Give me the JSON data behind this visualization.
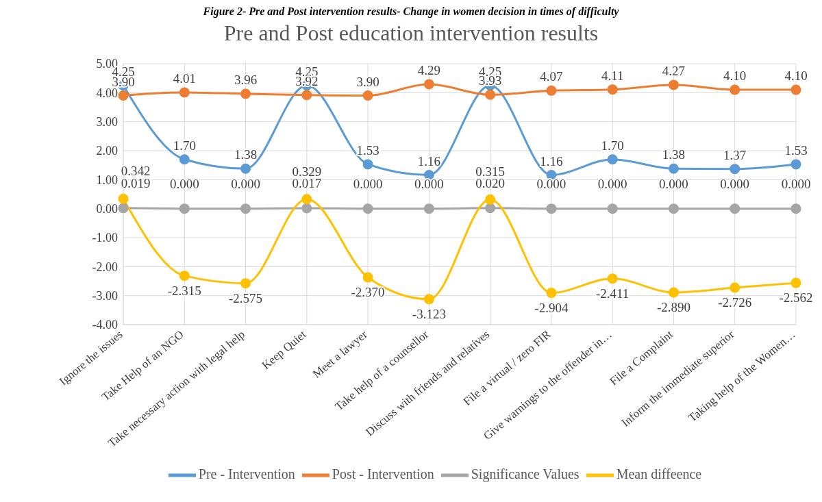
{
  "chart_data": {
    "type": "line",
    "title": "Pre and Post education intervention results",
    "annotations": [
      "Figure 2- Pre and Post intervention results- Change in women decision in times of difficulty"
    ],
    "categories": [
      "Ignore the issues",
      "Take Help of an NGO",
      "Take necessary action with legal help",
      "Keep Quiet",
      "Meet a lawyer",
      "Take help of a counsellor",
      "Discuss with friends and relatives",
      "File a virtual / zero FIR",
      "Give warnings to the offender in…",
      "File a Complaint",
      "Inform the immediate superior",
      "Taking help of the Women…"
    ],
    "series": [
      {
        "name": "Pre - Intervention",
        "color": "#5b9bd5",
        "values": [
          4.25,
          1.7,
          1.38,
          4.25,
          1.53,
          1.16,
          4.25,
          1.16,
          1.7,
          1.38,
          1.37,
          1.53
        ],
        "value_labels": [
          "4.25",
          "1.70",
          "1.38",
          "4.25",
          "1.53",
          "1.16",
          "4.25",
          "1.16",
          "1.70",
          "1.38",
          "1.37",
          "1.53"
        ]
      },
      {
        "name": "Post - Intervention",
        "color": "#ed7d31",
        "values": [
          3.9,
          4.01,
          3.96,
          3.92,
          3.9,
          4.29,
          3.93,
          4.07,
          4.11,
          4.27,
          4.1,
          4.1
        ],
        "value_labels": [
          "3.90",
          "4.01",
          "3.96",
          "3.92",
          "3.90",
          "4.29",
          "3.93",
          "4.07",
          "4.11",
          "4.27",
          "4.10",
          "4.10"
        ]
      },
      {
        "name": "Significance Values",
        "color": "#a5a5a5",
        "values": [
          0.019,
          0.0,
          0.0,
          0.017,
          0.0,
          0.0,
          0.02,
          0.0,
          0.0,
          0.0,
          0.0,
          0.0
        ],
        "value_labels": [
          "0.019",
          "0.000",
          "0.000",
          "0.017",
          "0.000",
          "0.000",
          "0.020",
          "0.000",
          "0.000",
          "0.000",
          "0.000",
          "0.000"
        ]
      },
      {
        "name": "Mean diffeence",
        "color": "#ffc000",
        "values": [
          0.342,
          -2.315,
          -2.575,
          0.329,
          -2.37,
          -3.123,
          0.315,
          -2.904,
          -2.411,
          -2.89,
          -2.726,
          -2.562
        ],
        "value_labels": [
          "0.342",
          "-2.315",
          "-2.575",
          "0.329",
          "-2.370",
          "-3.123",
          "0.315",
          "-2.904",
          "-2.411",
          "-2.890",
          "-2.726",
          "-2.562"
        ]
      }
    ],
    "ylim": [
      -4,
      5
    ],
    "yticks": [
      {
        "value": -4,
        "label": "-4.00"
      },
      {
        "value": -3,
        "label": "-3.00"
      },
      {
        "value": -2,
        "label": "-2.00"
      },
      {
        "value": -1,
        "label": "-1.00"
      },
      {
        "value": 0,
        "label": "0.00"
      },
      {
        "value": 1,
        "label": "1.00"
      },
      {
        "value": 2,
        "label": "2.00"
      },
      {
        "value": 3,
        "label": "3.00"
      },
      {
        "value": 4,
        "label": "4.00"
      },
      {
        "value": 5,
        "label": "5.00"
      }
    ],
    "grid": true,
    "legend": "bottom",
    "marker": "circle",
    "line_style": "solid"
  }
}
